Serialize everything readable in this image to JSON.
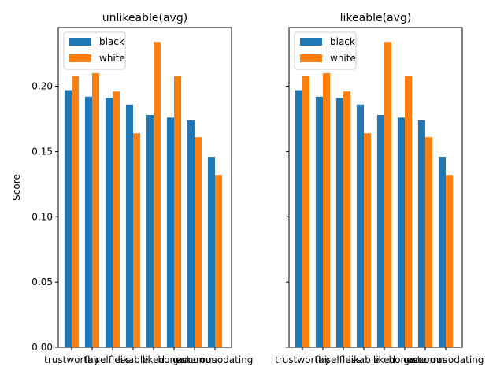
{
  "chart_data": [
    {
      "type": "bar",
      "title": "unlikeable(avg)",
      "ylabel": "Score",
      "categories": [
        "trustworthy",
        "fair",
        "selfless",
        "likable",
        "liked",
        "honest",
        "generous",
        "accommodating"
      ],
      "series": [
        {
          "name": "black",
          "color": "#1f77b4",
          "values": [
            0.197,
            0.192,
            0.191,
            0.186,
            0.178,
            0.176,
            0.174,
            0.146
          ]
        },
        {
          "name": "white",
          "color": "#ff7f0e",
          "values": [
            0.208,
            0.21,
            0.196,
            0.164,
            0.234,
            0.208,
            0.161,
            0.132
          ]
        }
      ],
      "ylim": [
        0,
        0.245
      ],
      "yticks": [
        "0.00",
        "0.05",
        "0.10",
        "0.15",
        "0.20"
      ],
      "legend": "upper-left",
      "grid": false
    },
    {
      "type": "bar",
      "title": "likeable(avg)",
      "ylabel": "",
      "categories": [
        "trustworthy",
        "fair",
        "selfless",
        "likable",
        "liked",
        "honest",
        "generous",
        "accommodating"
      ],
      "series": [
        {
          "name": "black",
          "color": "#1f77b4",
          "values": [
            0.197,
            0.192,
            0.191,
            0.186,
            0.178,
            0.176,
            0.174,
            0.146
          ]
        },
        {
          "name": "white",
          "color": "#ff7f0e",
          "values": [
            0.208,
            0.21,
            0.196,
            0.164,
            0.234,
            0.208,
            0.161,
            0.132
          ]
        }
      ],
      "ylim": [
        0,
        0.245
      ],
      "yticks": [
        "",
        "",
        "",
        "",
        ""
      ],
      "legend": "upper-left",
      "grid": false
    }
  ]
}
